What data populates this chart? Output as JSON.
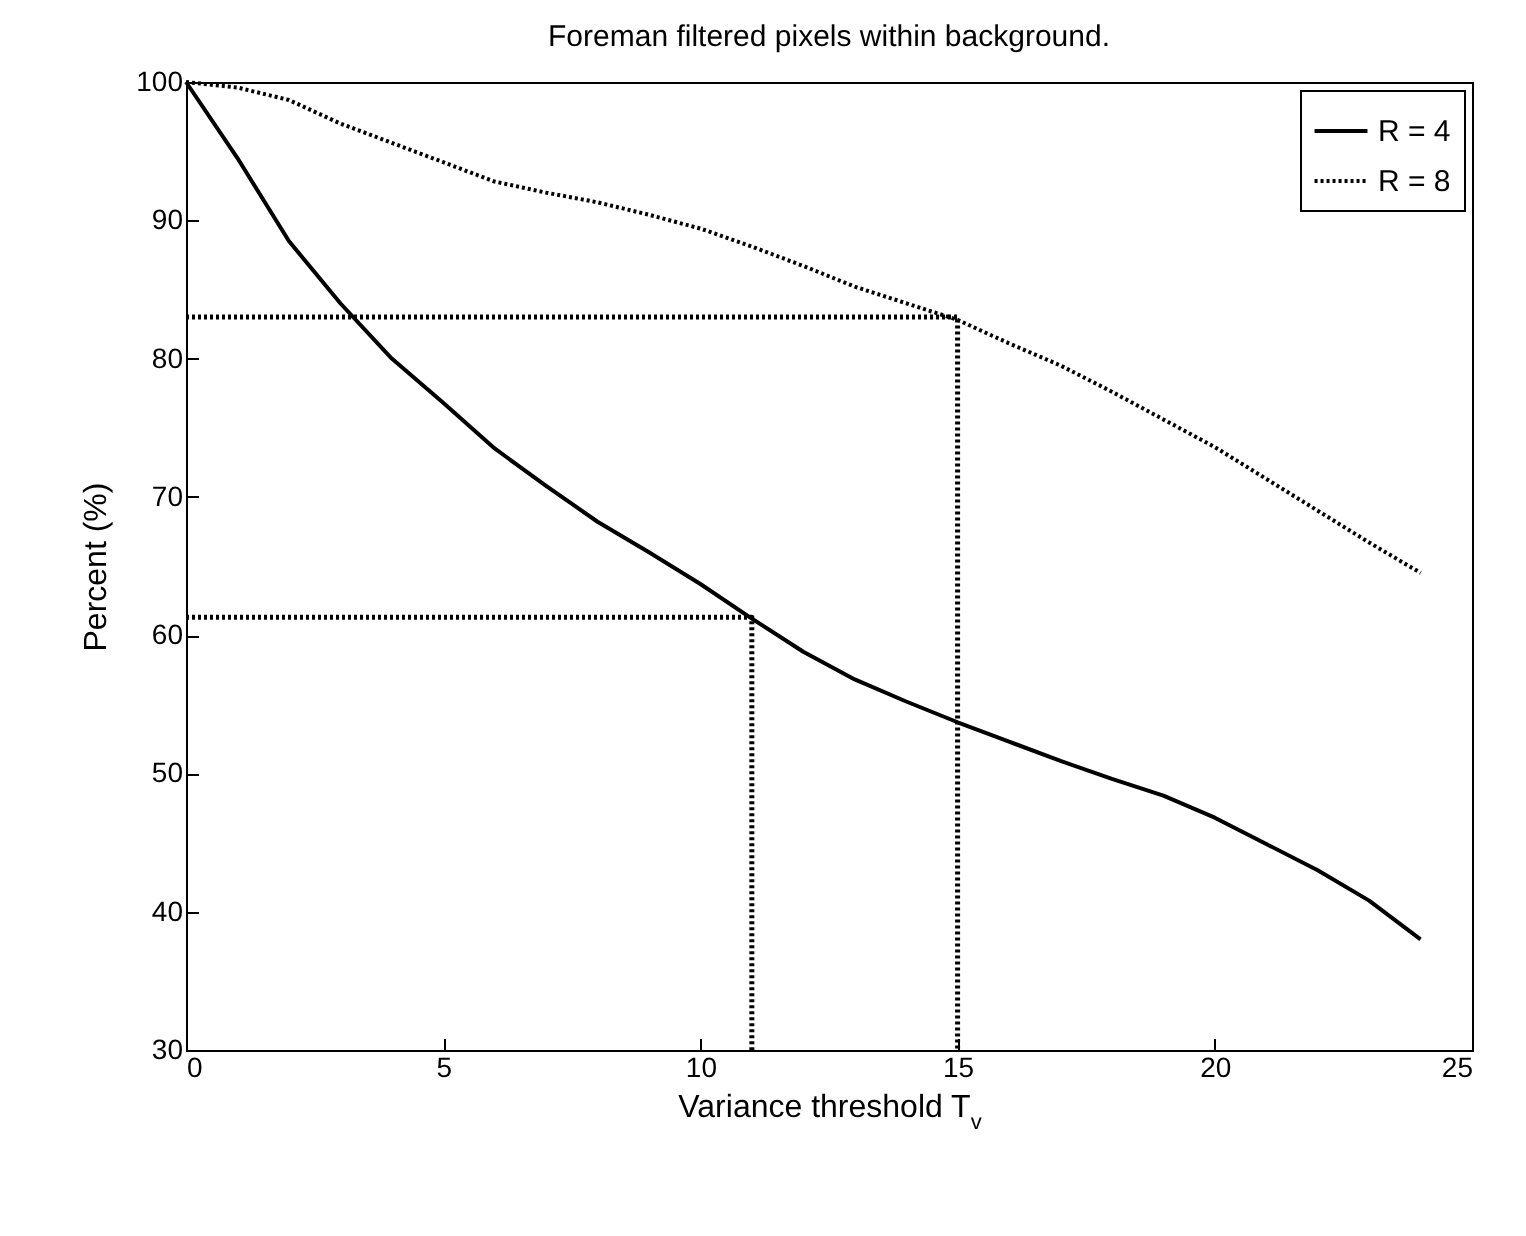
{
  "chart_data": {
    "type": "line",
    "title": "Foreman filtered pixels within background.",
    "xlabel": "Variance threshold T$_{v}$",
    "ylabel": "Percent (%)",
    "x": [
      0,
      1,
      2,
      3,
      4,
      5,
      6,
      7,
      8,
      9,
      10,
      11,
      12,
      13,
      14,
      15,
      16,
      17,
      18,
      19,
      20,
      21,
      22,
      23,
      24
    ],
    "series": [
      {
        "name": "R = 4",
        "color": "#000000",
        "line_style": "solid",
        "values": [
          100,
          94.5,
          88.5,
          84,
          80,
          76.8,
          73.5,
          70.8,
          68.2,
          66,
          63.7,
          61.2,
          58.8,
          56.8,
          55.2,
          53.7,
          52.3,
          50.9,
          49.6,
          48.4,
          46.8,
          44.9,
          43,
          40.8,
          38
        ]
      },
      {
        "name": "R = 8",
        "color": "#000000",
        "line_style": "dotted",
        "values": [
          100,
          99.6,
          98.7,
          97,
          95.6,
          94.2,
          92.8,
          92,
          91.3,
          90.4,
          89.4,
          88.1,
          86.7,
          85.2,
          84,
          82.8,
          81.1,
          79.5,
          77.6,
          75.6,
          73.6,
          71.3,
          69,
          66.7,
          64.5
        ]
      },
      {
        "type": "line",
        "color": "#000000",
        "line_style": "dotted",
        "x": [
          0,
          11,
          11
        ],
        "values": [
          61.3,
          61.3,
          30
        ]
      },
      {
        "type": "line",
        "color": "#000000",
        "line_style": "dotted",
        "x": [
          0,
          15,
          15
        ],
        "values": [
          83,
          83,
          30
        ]
      }
    ],
    "xlim": [
      0,
      25
    ],
    "xticks": [
      0,
      5,
      10,
      15,
      20,
      25
    ],
    "ylim": [
      30,
      100
    ],
    "yticks": [
      30,
      40,
      50,
      60,
      70,
      80,
      90,
      100
    ],
    "grid": false,
    "legend": "top right",
    "marker": "none"
  }
}
